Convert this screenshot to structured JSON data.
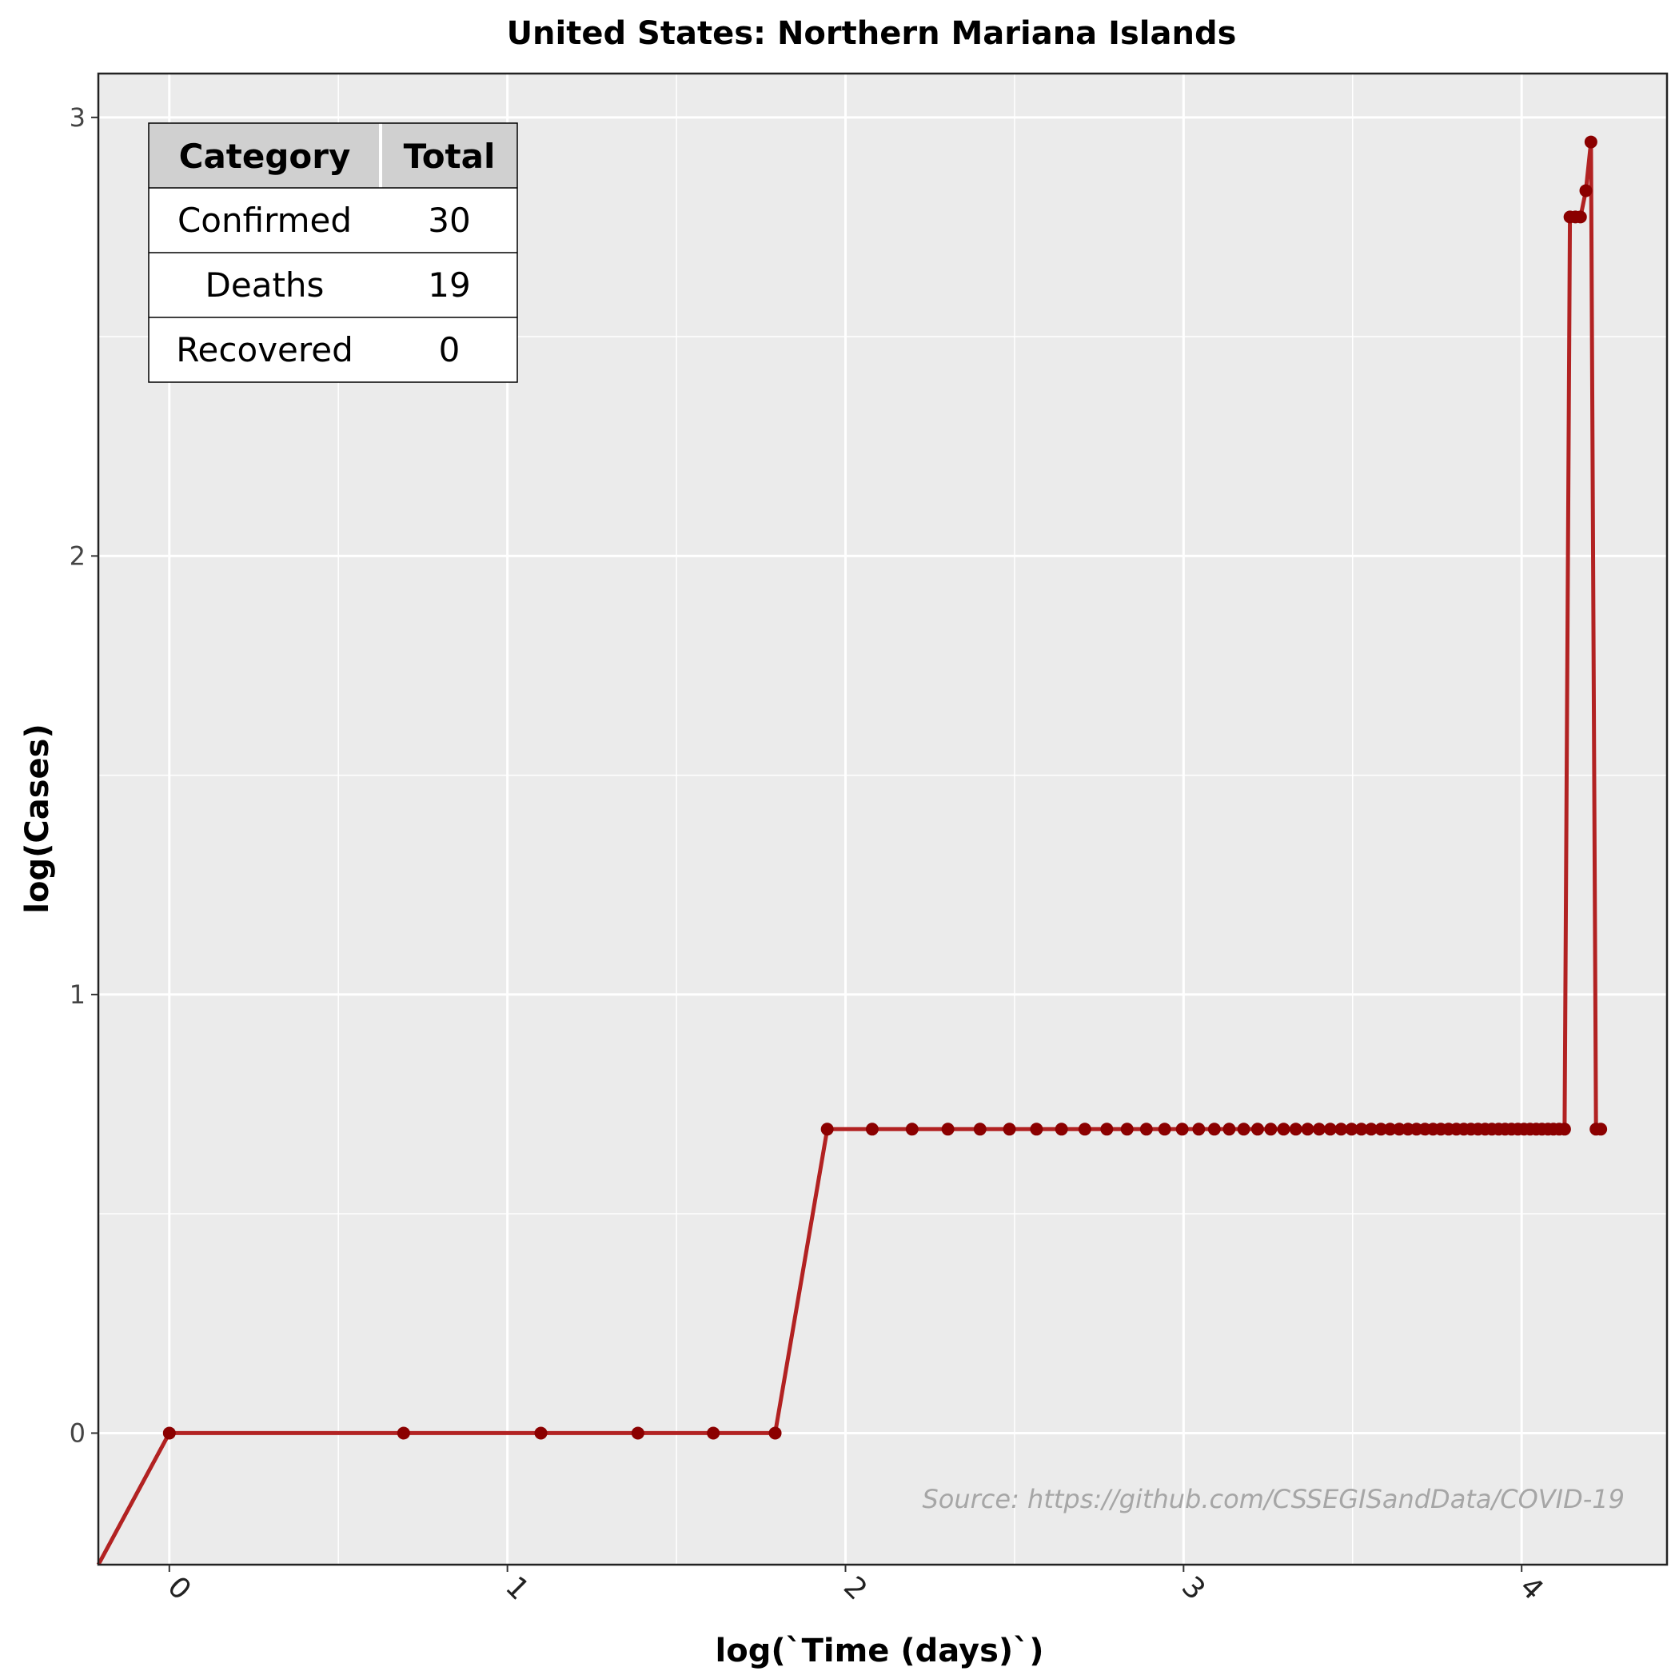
{
  "chart_data": {
    "type": "line",
    "title": "United States: Northern Mariana Islands",
    "xlabel": "log(`Time (days)`)",
    "ylabel": "log(Cases)",
    "xlim": [
      -0.21,
      4.43
    ],
    "ylim": [
      -0.3,
      3.1
    ],
    "x_ticks": [
      0,
      1,
      2,
      3,
      4
    ],
    "x_tick_labels": [
      "0",
      "1",
      "2",
      "3",
      "4"
    ],
    "y_ticks": [
      0,
      1,
      2,
      3
    ],
    "y_tick_labels": [
      "0",
      "1",
      "2",
      "3"
    ],
    "grid": true,
    "line_color": "#b22222",
    "point_color": "#8b0000",
    "background_color": "#ebebeb",
    "series": [
      {
        "x": [
          -0.21,
          0,
          0.693,
          1.099,
          1.386,
          1.609,
          1.792,
          1.946,
          2.079,
          2.197,
          2.303,
          2.398,
          2.485,
          2.565,
          2.639,
          2.708,
          2.773,
          2.833,
          2.89,
          2.944,
          2.996,
          3.045,
          3.091,
          3.135,
          3.178,
          3.219,
          3.258,
          3.296,
          3.332,
          3.367,
          3.401,
          3.434,
          3.466,
          3.497,
          3.526,
          3.555,
          3.584,
          3.611,
          3.638,
          3.664,
          3.689,
          3.714,
          3.738,
          3.761,
          3.784,
          3.807,
          3.829,
          3.85,
          3.871,
          3.892,
          3.912,
          3.932,
          3.951,
          3.97,
          3.989,
          4.007,
          4.025,
          4.043,
          4.06,
          4.078,
          4.094,
          4.111,
          4.127,
          4.143,
          4.159,
          4.174,
          4.19,
          4.205,
          4.22,
          4.234
        ],
        "y": [
          -0.3,
          0,
          0,
          0,
          0,
          0,
          0,
          0.693,
          0.693,
          0.693,
          0.693,
          0.693,
          0.693,
          0.693,
          0.693,
          0.693,
          0.693,
          0.693,
          0.693,
          0.693,
          0.693,
          0.693,
          0.693,
          0.693,
          0.693,
          0.693,
          0.693,
          0.693,
          0.693,
          0.693,
          0.693,
          0.693,
          0.693,
          0.693,
          0.693,
          0.693,
          0.693,
          0.693,
          0.693,
          0.693,
          0.693,
          0.693,
          0.693,
          0.693,
          0.693,
          0.693,
          0.693,
          0.693,
          0.693,
          0.693,
          0.693,
          0.693,
          0.693,
          0.693,
          0.693,
          0.693,
          0.693,
          0.693,
          0.693,
          0.693,
          0.693,
          0.693,
          0.693,
          2.773,
          2.773,
          2.773,
          2.833,
          2.944,
          0.693,
          0.693
        ]
      }
    ],
    "annotation": "Source: https://github.com/CSSEGISandData/COVID-19",
    "table": {
      "headers": [
        "Category",
        "Total"
      ],
      "rows": [
        [
          "Confirmed",
          "30"
        ],
        [
          "Deaths",
          "19"
        ],
        [
          "Recovered",
          "0"
        ]
      ]
    }
  }
}
